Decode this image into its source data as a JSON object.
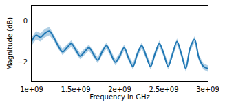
{
  "chart_data": {
    "type": "line",
    "x_label": "Frequency in GHz",
    "y_label": "Magnitude (dB)",
    "x": [
      1000000000.0,
      1050000000.0,
      1100000000.0,
      1150000000.0,
      1200000000.0,
      1250000000.0,
      1300000000.0,
      1350000000.0,
      1400000000.0,
      1450000000.0,
      1500000000.0,
      1550000000.0,
      1600000000.0,
      1650000000.0,
      1700000000.0,
      1750000000.0,
      1800000000.0,
      1850000000.0,
      1900000000.0,
      1950000000.0,
      2000000000.0,
      2050000000.0,
      2100000000.0,
      2150000000.0,
      2200000000.0,
      2250000000.0,
      2300000000.0,
      2350000000.0,
      2400000000.0,
      2450000000.0,
      2500000000.0,
      2550000000.0,
      2600000000.0,
      2650000000.0,
      2700000000.0,
      2750000000.0,
      2800000000.0,
      2850000000.0,
      2900000000.0,
      2950000000.0,
      3000000000.0
    ],
    "values": [
      -1.0,
      -0.7,
      -0.8,
      -0.6,
      -0.5,
      -0.8,
      -1.2,
      -1.5,
      -1.3,
      -1.1,
      -1.4,
      -1.7,
      -1.5,
      -1.3,
      -1.6,
      -1.9,
      -1.5,
      -1.2,
      -1.6,
      -2.0,
      -1.7,
      -1.3,
      -1.8,
      -2.2,
      -1.6,
      -1.2,
      -1.7,
      -2.2,
      -1.6,
      -1.1,
      -1.6,
      -2.2,
      -1.6,
      -1.0,
      -1.6,
      -2.3,
      -1.3,
      -0.9,
      -1.8,
      -2.2,
      -2.3
    ],
    "error": [
      0.2,
      0.2,
      0.2,
      0.2,
      0.2,
      0.15,
      0.15,
      0.15,
      0.15,
      0.15,
      0.15,
      0.15,
      0.15,
      0.15,
      0.15,
      0.15,
      0.15,
      0.15,
      0.15,
      0.15,
      0.15,
      0.15,
      0.15,
      0.15,
      0.15,
      0.15,
      0.15,
      0.15,
      0.15,
      0.15,
      0.15,
      0.15,
      0.15,
      0.15,
      0.15,
      0.15,
      0.15,
      0.15,
      0.15,
      0.15,
      0.15
    ],
    "color": "#1f77b4",
    "xlim": [
      1000000000.0,
      3000000000.0
    ],
    "xticks": [
      {
        "value": 1000000000.0,
        "label": "1e+09"
      },
      {
        "value": 1500000000.0,
        "label": "1.5e+09"
      },
      {
        "value": 2000000000.0,
        "label": "2e+09"
      },
      {
        "value": 2500000000.0,
        "label": "2.5e+09"
      },
      {
        "value": 3000000000.0,
        "label": "3e+09"
      }
    ],
    "ylim": [
      -2.9,
      0.7
    ],
    "yticks": [
      0,
      {
        "value": -2,
        "label": "−2"
      }
    ],
    "grid": true
  }
}
